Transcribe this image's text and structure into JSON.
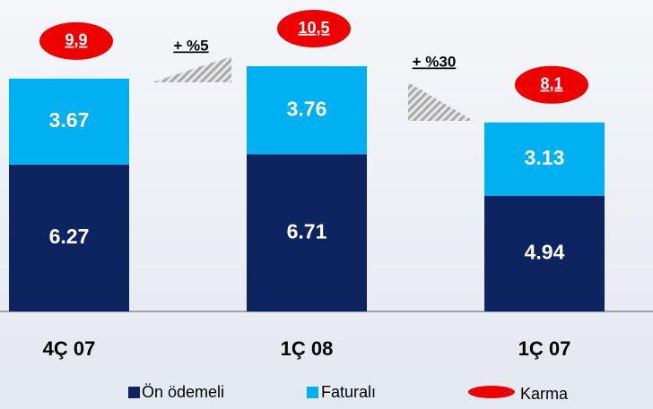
{
  "chart_data": {
    "type": "bar",
    "stacked": true,
    "categories": [
      "4Ç 07",
      "1Ç 08",
      "1Ç 07"
    ],
    "series": [
      {
        "name": "Ön ödemeli",
        "color": "#0d2460",
        "values": [
          6.27,
          6.71,
          4.94
        ]
      },
      {
        "name": "Faturalı",
        "color": "#00b0f0",
        "values": [
          3.67,
          3.76,
          3.13
        ]
      }
    ],
    "totals": {
      "name": "Karma",
      "color": "#ee0000",
      "values": [
        9.9,
        10.5,
        8.1
      ],
      "value_labels": [
        "9,9",
        "10,5",
        "8,1"
      ]
    },
    "annotations": [
      "+ %5",
      "+ %30"
    ]
  }
}
